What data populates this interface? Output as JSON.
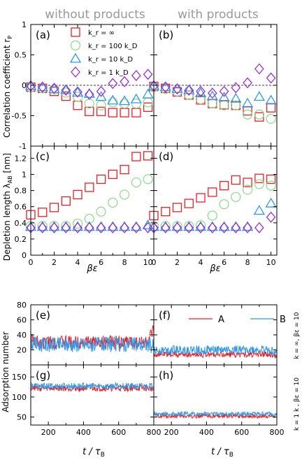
{
  "header": {
    "left": "without products",
    "right": "with products"
  },
  "axes_text": {
    "corr_ylabel": "Correlation coefficient r",
    "corr_ylabel_sub": "P",
    "depl_ylabel": "Depletion length λ",
    "depl_ylabel_sub": "AB",
    "depl_ylabel_unit": " [nm]",
    "be_xlabel": "βε",
    "ads_ylabel": "Adsorption number",
    "t_xlabel": "t / τ",
    "t_xlabel_sub": "B"
  },
  "panel_labels": [
    "(a)",
    "(b)",
    "(c)",
    "(d)",
    "(e)",
    "(f)",
    "(g)",
    "(h)"
  ],
  "side_labels": {
    "top": "k = ∞, βε = 10",
    "bottom": "k = 1 k , βε = 10"
  },
  "colors": {
    "red": "#e8202a",
    "green": "#8fd88f",
    "blue": "#3399e6",
    "purple": "#9933cc"
  },
  "chart_data": [
    {
      "type": "scatter",
      "panel": "(a)",
      "xlabel": "",
      "ylabel": "Correlation coefficient r_P",
      "xlim": [
        0,
        10.5
      ],
      "ylim": [
        -1,
        1
      ],
      "xticks": [
        0,
        2,
        4,
        6,
        8,
        10
      ],
      "yticks": [
        -1,
        -0.5,
        0,
        0.5,
        1
      ],
      "legend": [
        "k_r = ∞",
        "k_r = 100 k_D",
        "k_r = 10 k_D",
        "k_r = 1 k_D"
      ],
      "x": [
        0,
        1,
        2,
        3,
        4,
        5,
        6,
        7,
        8,
        9,
        10
      ],
      "series": [
        {
          "name": "k_r = ∞",
          "marker": "square",
          "values": [
            -0.03,
            -0.05,
            -0.1,
            -0.18,
            -0.33,
            -0.43,
            -0.43,
            -0.45,
            -0.45,
            -0.45,
            -0.36
          ]
        },
        {
          "name": "k_r = 100 k_D",
          "marker": "circle",
          "values": [
            -0.03,
            -0.05,
            -0.07,
            -0.12,
            -0.19,
            -0.3,
            -0.33,
            -0.28,
            -0.3,
            -0.3,
            -0.28
          ]
        },
        {
          "name": "k_r = 10 k_D",
          "marker": "triangle",
          "values": [
            -0.01,
            -0.03,
            -0.06,
            -0.08,
            -0.12,
            -0.14,
            -0.19,
            -0.25,
            -0.26,
            -0.23,
            -0.15
          ]
        },
        {
          "name": "k_r = 1 k_D",
          "marker": "diamond",
          "values": [
            -0.01,
            -0.03,
            -0.05,
            -0.08,
            -0.11,
            -0.15,
            -0.1,
            0.03,
            0.06,
            0.16,
            0.18
          ]
        }
      ]
    },
    {
      "type": "scatter",
      "panel": "(b)",
      "xlabel": "",
      "ylabel": "",
      "xlim": [
        0,
        10.5
      ],
      "ylim": [
        -1,
        1
      ],
      "x": [
        0,
        1,
        2,
        3,
        4,
        5,
        6,
        7,
        8,
        9,
        10
      ],
      "series": [
        {
          "name": "k_r = ∞",
          "marker": "square",
          "values": [
            -0.02,
            -0.05,
            -0.11,
            -0.16,
            -0.24,
            -0.3,
            -0.32,
            -0.33,
            -0.42,
            -0.52,
            -0.37
          ]
        },
        {
          "name": "k_r = 100 k_D",
          "marker": "circle",
          "values": [
            -0.03,
            -0.06,
            -0.1,
            -0.16,
            -0.23,
            -0.3,
            -0.33,
            -0.33,
            -0.48,
            -0.48,
            -0.55
          ]
        },
        {
          "name": "k_r = 10 k_D",
          "marker": "triangle",
          "values": [
            -0.01,
            -0.03,
            -0.06,
            -0.08,
            -0.13,
            -0.18,
            -0.2,
            -0.22,
            -0.3,
            -0.19,
            -0.25
          ]
        },
        {
          "name": "k_r = 1 k_D",
          "marker": "diamond",
          "values": [
            -0.01,
            -0.03,
            -0.06,
            -0.08,
            -0.1,
            -0.13,
            -0.1,
            -0.04,
            0.04,
            0.27,
            0.12
          ]
        }
      ]
    },
    {
      "type": "scatter",
      "panel": "(c)",
      "xlabel": "βε",
      "ylabel": "Depletion length λ_AB [nm]",
      "xlim": [
        0,
        10.5
      ],
      "ylim": [
        0,
        1.35
      ],
      "xticks": [
        0,
        2,
        4,
        6,
        8,
        10
      ],
      "yticks": [
        0,
        0.2,
        0.4,
        0.6,
        0.8,
        1,
        1.2
      ],
      "x": [
        0,
        1,
        2,
        3,
        4,
        5,
        6,
        7,
        8,
        9,
        10
      ],
      "series": [
        {
          "name": "k_r = ∞",
          "marker": "square",
          "values": [
            0.5,
            0.53,
            0.59,
            0.67,
            0.75,
            0.84,
            0.94,
            1.0,
            1.06,
            1.22,
            1.23
          ]
        },
        {
          "name": "k_r = 100 k_D",
          "marker": "circle",
          "values": [
            0.36,
            0.36,
            0.36,
            0.36,
            0.39,
            0.45,
            0.54,
            0.65,
            0.75,
            0.9,
            0.94
          ]
        },
        {
          "name": "k_r = 10 k_D",
          "marker": "triangle",
          "values": [
            0.35,
            0.35,
            0.35,
            0.35,
            0.35,
            0.35,
            0.35,
            0.35,
            0.35,
            0.35,
            0.37
          ]
        },
        {
          "name": "k_r = 1 k_D",
          "marker": "diamond",
          "values": [
            0.34,
            0.34,
            0.34,
            0.34,
            0.34,
            0.34,
            0.34,
            0.34,
            0.34,
            0.34,
            0.34
          ]
        }
      ]
    },
    {
      "type": "scatter",
      "panel": "(d)",
      "xlabel": "βε",
      "ylabel": "",
      "xlim": [
        0,
        10.5
      ],
      "ylim": [
        0,
        1.35
      ],
      "x": [
        0,
        1,
        2,
        3,
        4,
        5,
        6,
        7,
        8,
        9,
        10
      ],
      "series": [
        {
          "name": "k_r = ∞",
          "marker": "square",
          "values": [
            0.49,
            0.54,
            0.59,
            0.64,
            0.71,
            0.78,
            0.86,
            0.93,
            0.9,
            0.95,
            0.94
          ]
        },
        {
          "name": "k_r = 100 k_D",
          "marker": "circle",
          "values": [
            0.36,
            0.36,
            0.36,
            0.36,
            0.37,
            0.49,
            0.63,
            0.72,
            0.81,
            0.88,
            0.86
          ]
        },
        {
          "name": "k_r = 10 k_D",
          "marker": "triangle",
          "values": [
            0.35,
            0.35,
            0.35,
            0.35,
            0.35,
            0.35,
            0.35,
            0.35,
            0.35,
            0.55,
            0.64
          ]
        },
        {
          "name": "k_r = 1 k_D",
          "marker": "diamond",
          "values": [
            0.34,
            0.34,
            0.34,
            0.34,
            0.34,
            0.34,
            0.34,
            0.34,
            0.34,
            0.34,
            0.47
          ]
        }
      ]
    },
    {
      "type": "line",
      "panel": "(e)",
      "xlabel": "",
      "ylabel": "Adsorption number",
      "xlim": [
        100,
        800
      ],
      "ylim": [
        0,
        80
      ],
      "yticks": [
        20,
        40,
        60,
        80
      ],
      "series": [
        {
          "name": "A",
          "mean": 30,
          "noise": 9,
          "start": 35,
          "end": 45
        },
        {
          "name": "B",
          "mean": 27,
          "noise": 10,
          "start": 30,
          "end": 25
        }
      ]
    },
    {
      "type": "line",
      "panel": "(f)",
      "xlabel": "",
      "ylabel": "",
      "xlim": [
        100,
        800
      ],
      "ylim": [
        0,
        80
      ],
      "yticks": [
        20,
        40,
        60,
        80
      ],
      "legend": [
        "A",
        "B"
      ],
      "series": [
        {
          "name": "A",
          "mean": 14,
          "noise": 4,
          "start": 14,
          "end": 12
        },
        {
          "name": "B",
          "mean": 20,
          "noise": 6,
          "start": 18,
          "end": 15
        }
      ]
    },
    {
      "type": "line",
      "panel": "(g)",
      "xlabel": "t / τ_B",
      "ylabel": "",
      "xlim": [
        100,
        800
      ],
      "ylim": [
        30,
        180
      ],
      "xticks": [
        200,
        400,
        600,
        800
      ],
      "yticks": [
        50,
        100,
        150
      ],
      "series": [
        {
          "name": "A",
          "mean": 122,
          "noise": 8,
          "start": 125,
          "end": 120
        },
        {
          "name": "B",
          "mean": 127,
          "noise": 8,
          "start": 130,
          "end": 128
        }
      ]
    },
    {
      "type": "line",
      "panel": "(h)",
      "xlabel": "t / τ_B",
      "ylabel": "",
      "xlim": [
        100,
        800
      ],
      "ylim": [
        30,
        180
      ],
      "xticks": [
        200,
        400,
        600,
        800
      ],
      "yticks": [
        50,
        100,
        150
      ],
      "series": [
        {
          "name": "A",
          "mean": 52,
          "noise": 5,
          "start": 55,
          "end": 52
        },
        {
          "name": "B",
          "mean": 58,
          "noise": 5,
          "start": 60,
          "end": 55
        }
      ]
    }
  ]
}
